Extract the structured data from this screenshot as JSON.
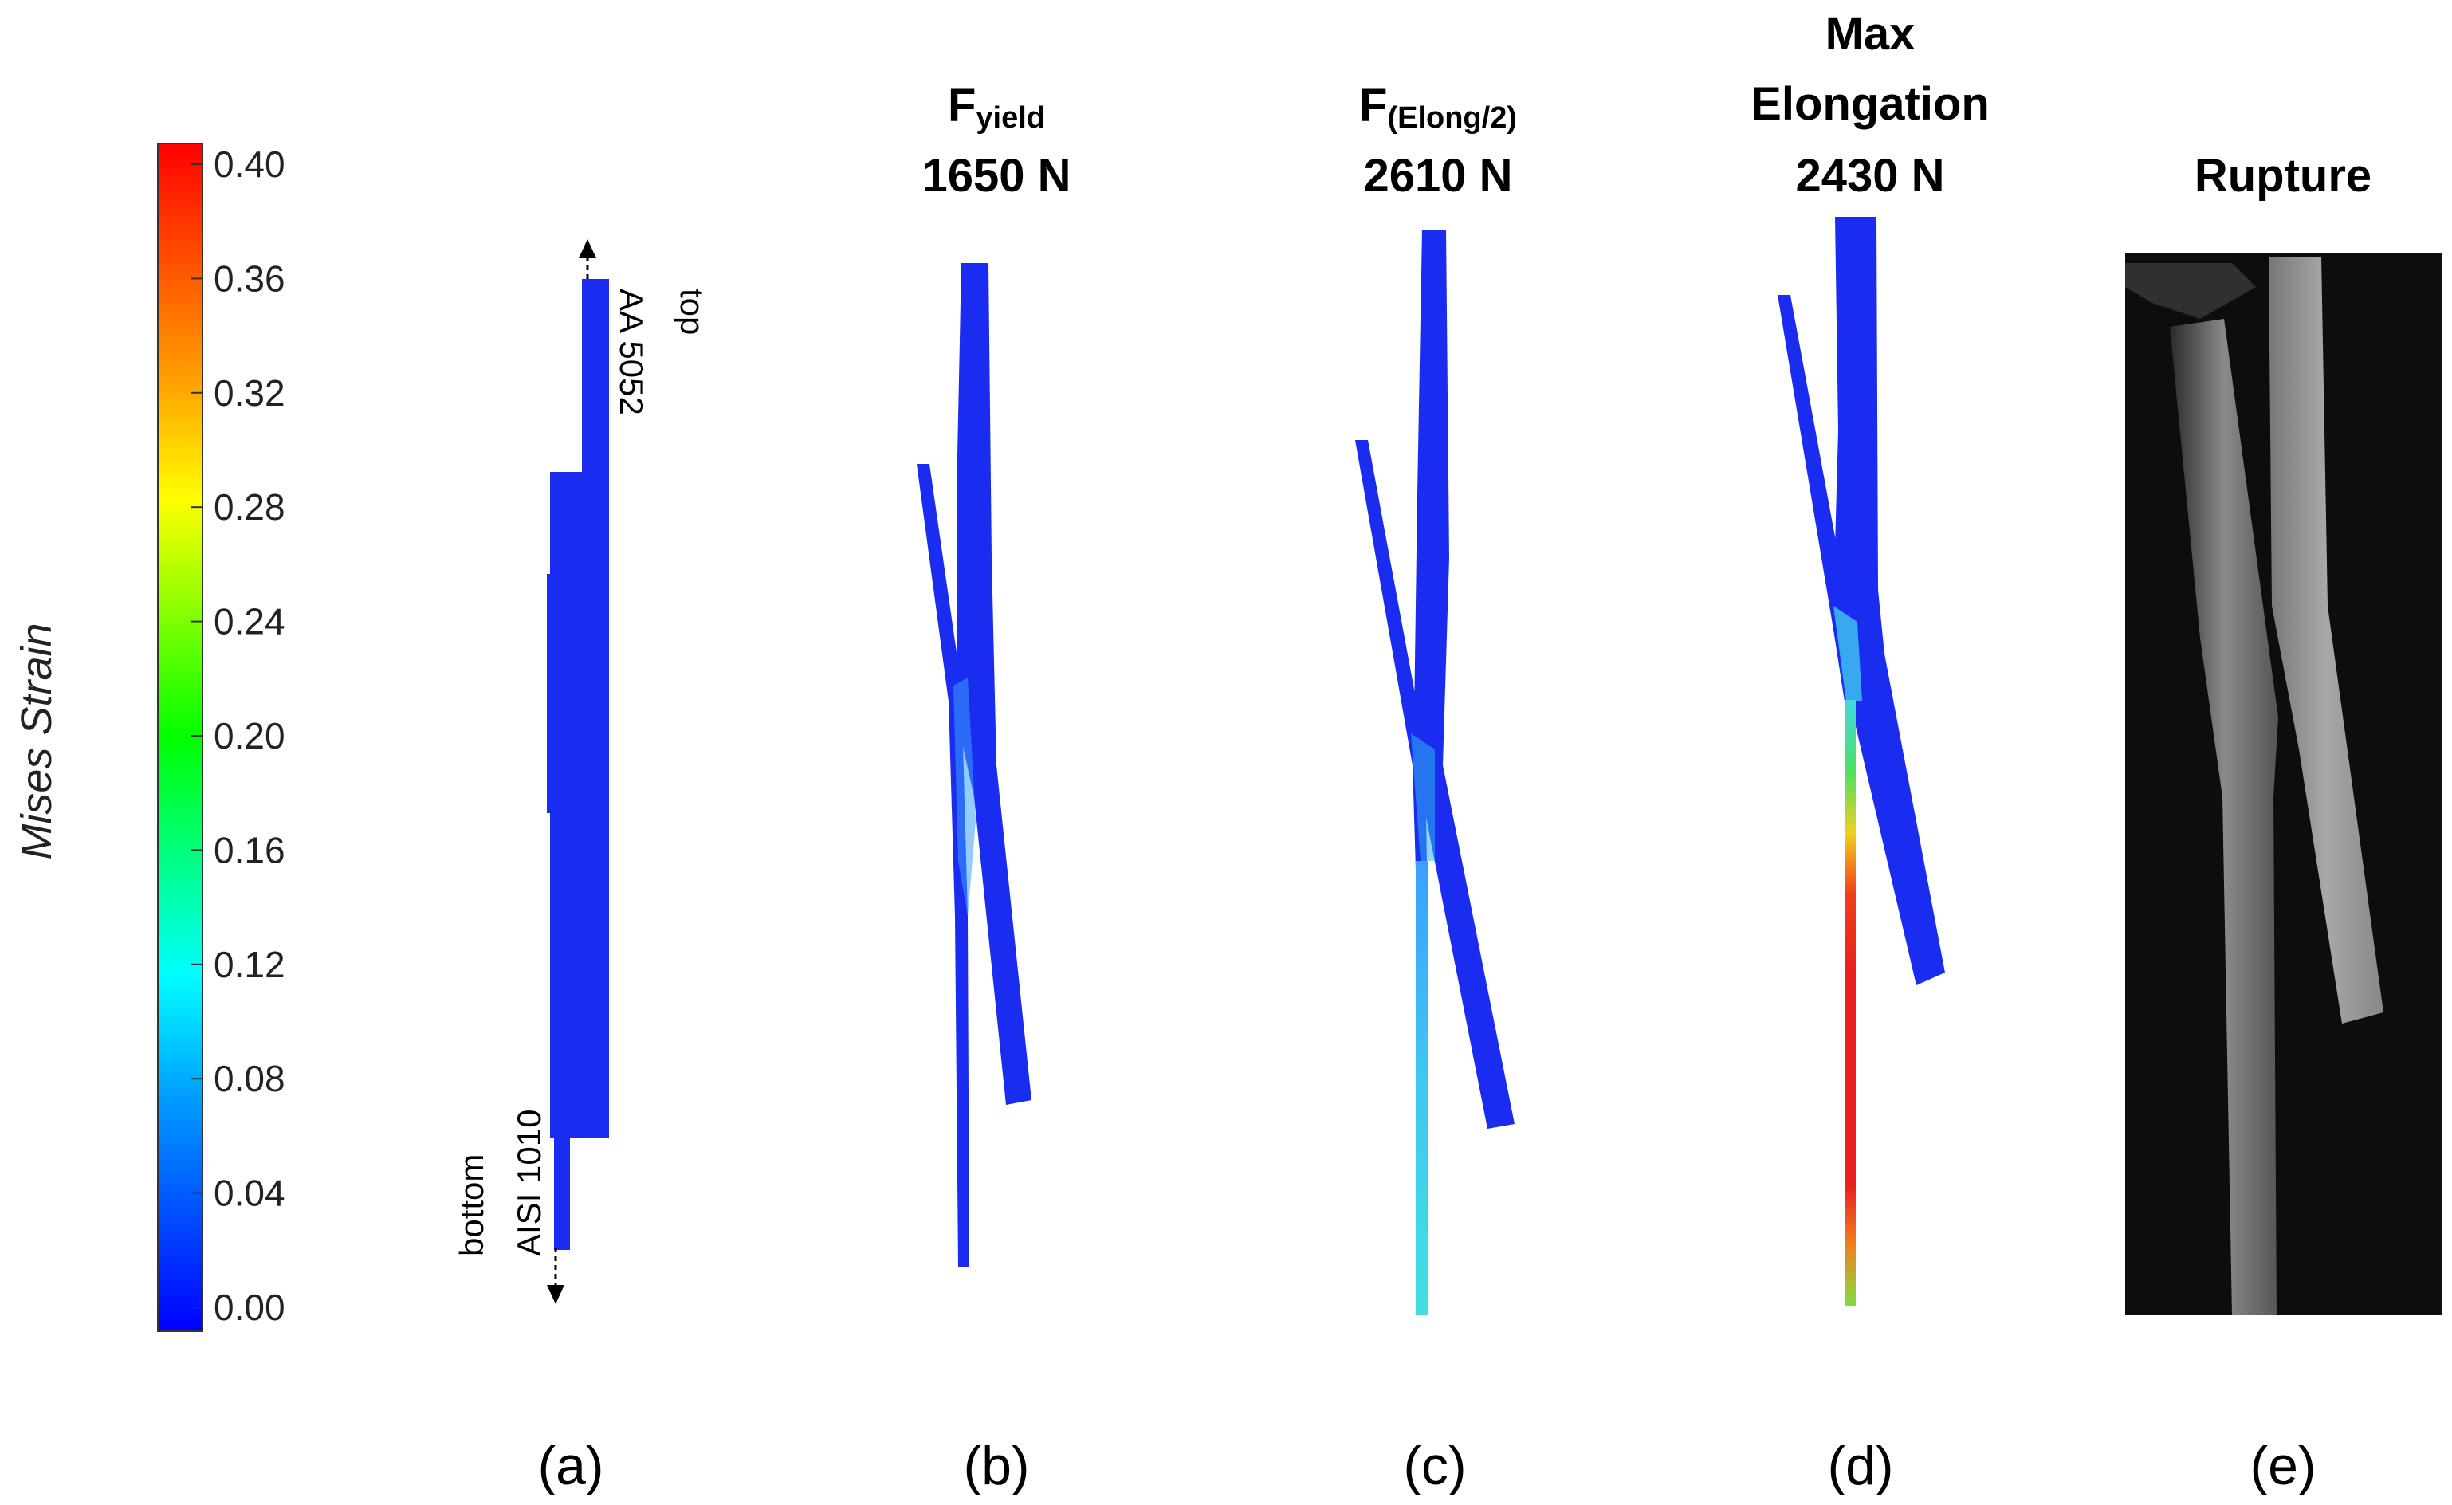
{
  "colorbar": {
    "label": "Mises Strain",
    "ticks": [
      "0.40",
      "0.36",
      "0.32",
      "0.28",
      "0.24",
      "0.20",
      "0.16",
      "0.12",
      "0.08",
      "0.04",
      "0.00"
    ],
    "gradient": [
      "#0000ff",
      "#0050ff",
      "#00a0ff",
      "#00ffff",
      "#00ff80",
      "#00ff00",
      "#80ff00",
      "#ffff00",
      "#ffa000",
      "#ff5000",
      "#ff0000"
    ]
  },
  "panel_a": {
    "label_top": "top",
    "label_top_material": "AA 5052",
    "label_bottom": "bottom",
    "label_bottom_material": "AISI 1010",
    "letter": "(a)"
  },
  "panel_b": {
    "title_main": "F",
    "title_sub": "yield",
    "force": "1650 N",
    "letter": "(b)"
  },
  "panel_c": {
    "title_main": "F",
    "title_sub": "(Elong/2)",
    "force": "2610 N",
    "letter": "(c)"
  },
  "panel_d": {
    "title_line1": "Max",
    "title_line2": "Elongation",
    "force": "2430 N",
    "letter": "(d)"
  },
  "panel_e": {
    "title": "Rupture",
    "letter": "(e)"
  },
  "colors": {
    "strain_blue": "#1a2cf0",
    "cyan": "#33ccee",
    "red": "#e8201c",
    "photo_bg": "#0d0d0d"
  }
}
